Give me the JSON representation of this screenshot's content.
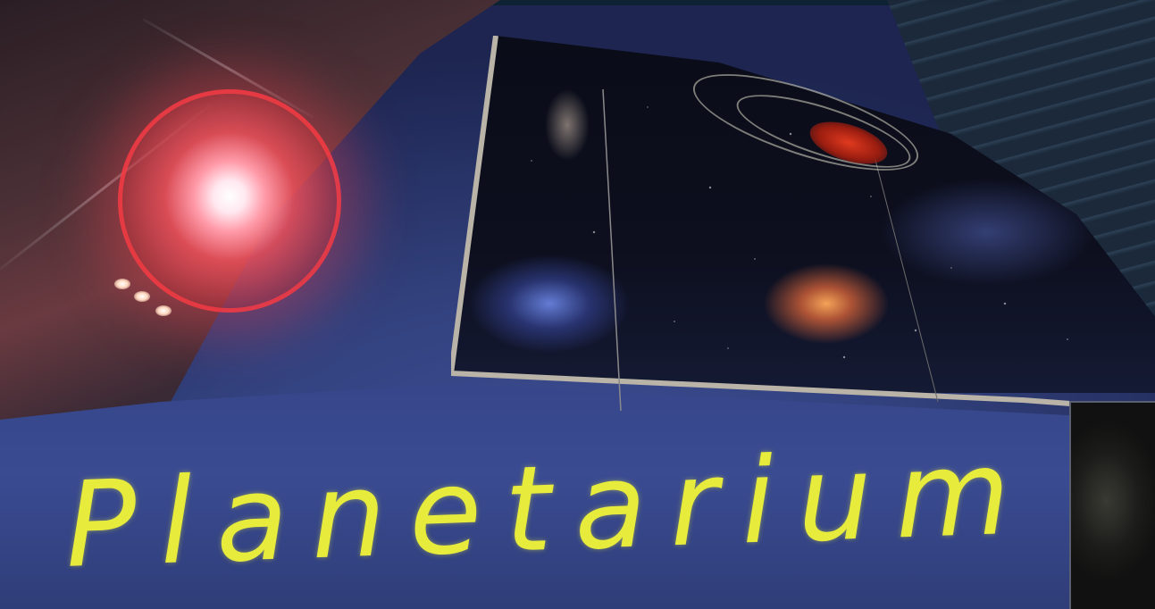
{
  "sign": {
    "text": "Planetarium",
    "color": "#e7ec3c"
  },
  "scene": {
    "wall_color": "#37468a",
    "flare_color": "#ff4a58"
  }
}
